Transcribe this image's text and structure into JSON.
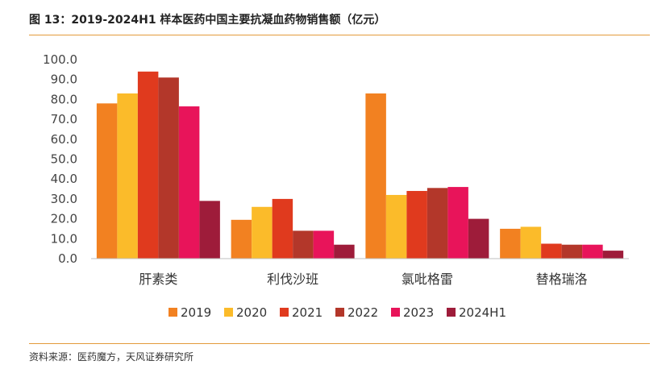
{
  "figure": {
    "title": "图 13：2019-2024H1 样本医药中国主要抗凝血药物销售额（亿元）",
    "source": "资料来源：医药魔方，天风证券研究所"
  },
  "chart_data": {
    "type": "bar",
    "categories": [
      "肝素类",
      "利伐沙班",
      "氯吡格雷",
      "替格瑞洛"
    ],
    "y_ticks": [
      "0.0",
      "10.0",
      "20.0",
      "30.0",
      "40.0",
      "50.0",
      "60.0",
      "70.0",
      "80.0",
      "90.0",
      "100.0"
    ],
    "ylim": [
      0,
      100
    ],
    "grid": false,
    "legend_position": "bottom",
    "series": [
      {
        "name": "2019",
        "color": "#f28121",
        "values": [
          78.0,
          19.5,
          83.0,
          15.0
        ]
      },
      {
        "name": "2020",
        "color": "#fbbb2a",
        "values": [
          83.0,
          26.0,
          32.0,
          16.0
        ]
      },
      {
        "name": "2021",
        "color": "#e03a1e",
        "values": [
          94.0,
          30.0,
          34.0,
          7.5
        ]
      },
      {
        "name": "2022",
        "color": "#b3372a",
        "values": [
          91.0,
          14.0,
          35.5,
          7.0
        ]
      },
      {
        "name": "2023",
        "color": "#e8145a",
        "values": [
          76.5,
          14.0,
          36.0,
          7.0
        ]
      },
      {
        "name": "2024H1",
        "color": "#9e1c3a",
        "values": [
          29.0,
          7.0,
          20.0,
          4.0
        ]
      }
    ]
  }
}
